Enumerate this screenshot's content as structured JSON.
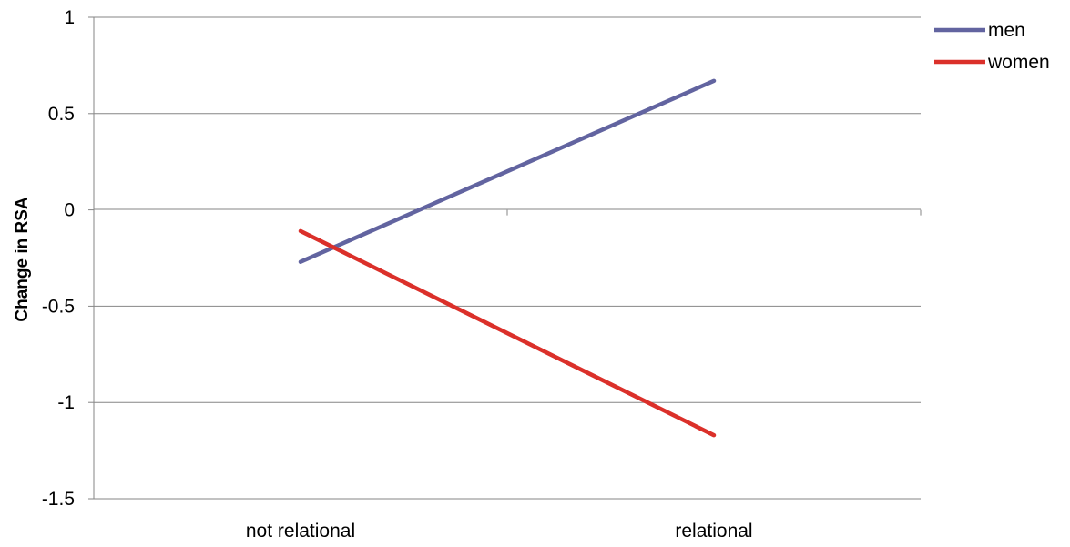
{
  "chart_data": {
    "type": "line",
    "title": "",
    "xlabel": "",
    "ylabel": "Change in RSA",
    "categories": [
      "not relational",
      "relational"
    ],
    "ylim": [
      -1.5,
      1
    ],
    "yticks": [
      1,
      0.5,
      0,
      -0.5,
      -1,
      -1.5
    ],
    "ytick_labels": [
      "1",
      "0.5",
      "0",
      "-0.5",
      "-1",
      "-1.5"
    ],
    "grid": true,
    "legend_position": "top-right",
    "series": [
      {
        "name": "men",
        "values": [
          -0.27,
          0.67
        ],
        "color": "#6264A0"
      },
      {
        "name": "women",
        "values": [
          -0.11,
          -1.17
        ],
        "color": "#DB302A"
      }
    ]
  }
}
